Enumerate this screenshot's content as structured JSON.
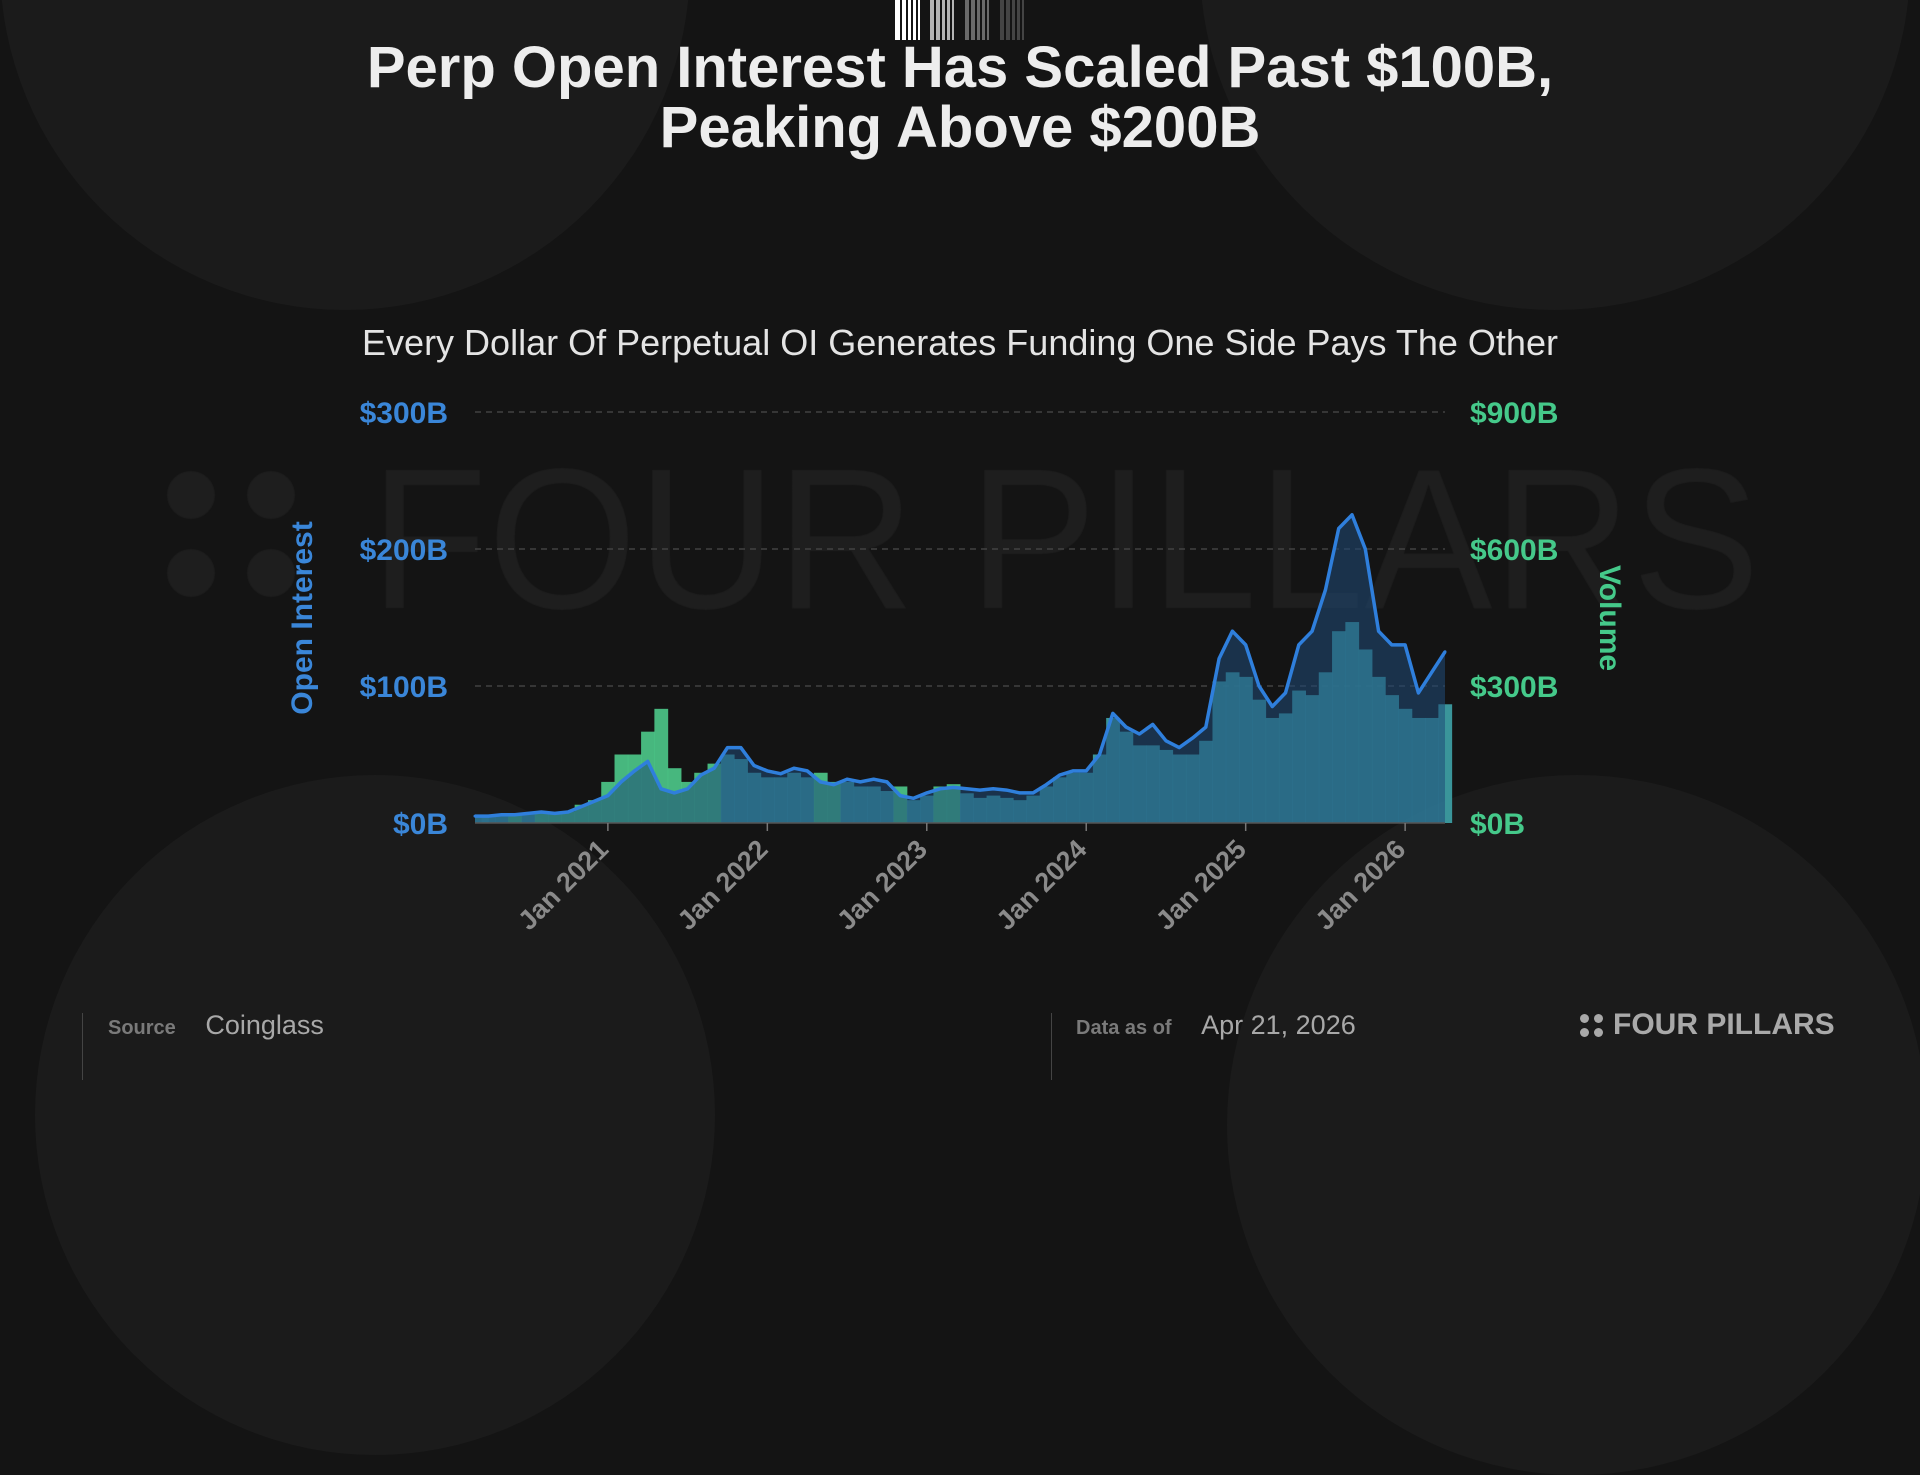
{
  "title_lines": [
    "Perp Open Interest Has Scaled Past $100B,",
    "Peaking Above $200B"
  ],
  "footer": {
    "source_label": "Source",
    "source_value": "Coinglass",
    "date_label": "Data as of",
    "date_value": "Apr 21, 2026",
    "brand": "FOUR PILLARS"
  },
  "watermark": "FOUR PILLARS",
  "colors": {
    "oi": "#2f7fdc",
    "oi_fill": "#1f4a78",
    "volume": "#3ea3a8",
    "volume_spike": "#4cc98a",
    "left_axis": "#3a86d8",
    "right_axis": "#45c98a"
  },
  "chart_data": {
    "type": "line",
    "title": "Every Dollar Of Perpetual OI Generates Funding One Side Pays The Other",
    "x_start": "2020-03",
    "x_step": "month",
    "xtick_labels": [
      "Jan 2021",
      "Jan 2022",
      "Jan 2023",
      "Jan 2024",
      "Jan 2025",
      "Jan 2026"
    ],
    "xtick_month_index": [
      10,
      22,
      34,
      46,
      58,
      70
    ],
    "ylabel_left": "Open Interest",
    "ylabel_right": "Volume",
    "ylim_left": [
      0,
      300
    ],
    "ylim_right": [
      0,
      900
    ],
    "yticks_left": [
      "$0B",
      "$100B",
      "$200B",
      "$300B"
    ],
    "yticks_right": [
      "$0B",
      "$300B",
      "$600B",
      "$900B"
    ],
    "grid": true,
    "series": [
      {
        "name": "Open Interest ($B)",
        "axis": "left",
        "values": [
          5,
          5,
          6,
          6,
          7,
          8,
          7,
          8,
          12,
          16,
          20,
          30,
          38,
          45,
          25,
          22,
          25,
          35,
          40,
          55,
          55,
          42,
          38,
          36,
          40,
          38,
          30,
          28,
          32,
          30,
          32,
          30,
          20,
          18,
          22,
          25,
          26,
          25,
          24,
          25,
          24,
          22,
          22,
          28,
          35,
          38,
          38,
          50,
          80,
          70,
          65,
          72,
          60,
          55,
          62,
          70,
          120,
          140,
          130,
          100,
          85,
          95,
          130,
          140,
          170,
          215,
          225,
          200,
          140,
          130,
          130,
          95,
          110,
          125
        ]
      },
      {
        "name": "Volume ($B)",
        "axis": "right",
        "values": [
          15,
          15,
          18,
          20,
          20,
          25,
          22,
          25,
          40,
          50,
          90,
          150,
          150,
          200,
          250,
          120,
          90,
          110,
          130,
          150,
          140,
          110,
          100,
          100,
          110,
          100,
          110,
          90,
          90,
          80,
          80,
          70,
          80,
          50,
          60,
          80,
          85,
          65,
          55,
          60,
          55,
          50,
          60,
          80,
          100,
          110,
          110,
          150,
          230,
          200,
          170,
          170,
          160,
          150,
          150,
          180,
          310,
          330,
          320,
          270,
          230,
          240,
          290,
          280,
          330,
          420,
          440,
          380,
          320,
          280,
          250,
          230,
          230,
          260
        ]
      }
    ]
  }
}
